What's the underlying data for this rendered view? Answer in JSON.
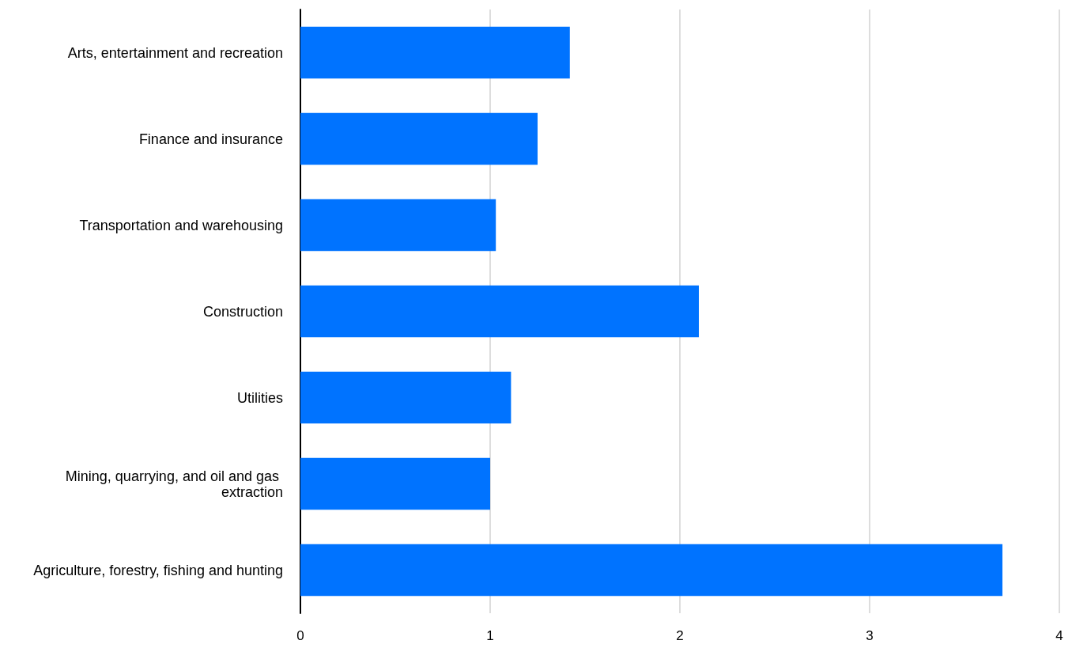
{
  "chart_data": {
    "type": "bar",
    "orientation": "horizontal",
    "categories": [
      "Arts, entertainment and recreation",
      "Finance and insurance",
      "Transportation and warehousing",
      "Construction",
      "Utilities",
      "Mining, quarrying, and oil and gas extraction",
      "Agriculture, forestry, fishing and hunting"
    ],
    "values": [
      1.42,
      1.25,
      1.03,
      2.1,
      1.11,
      1.0,
      3.7
    ],
    "color": "#0073ff",
    "xlim": [
      0,
      4
    ],
    "xticks": [
      0,
      1,
      2,
      3,
      4
    ],
    "grid": "x"
  }
}
